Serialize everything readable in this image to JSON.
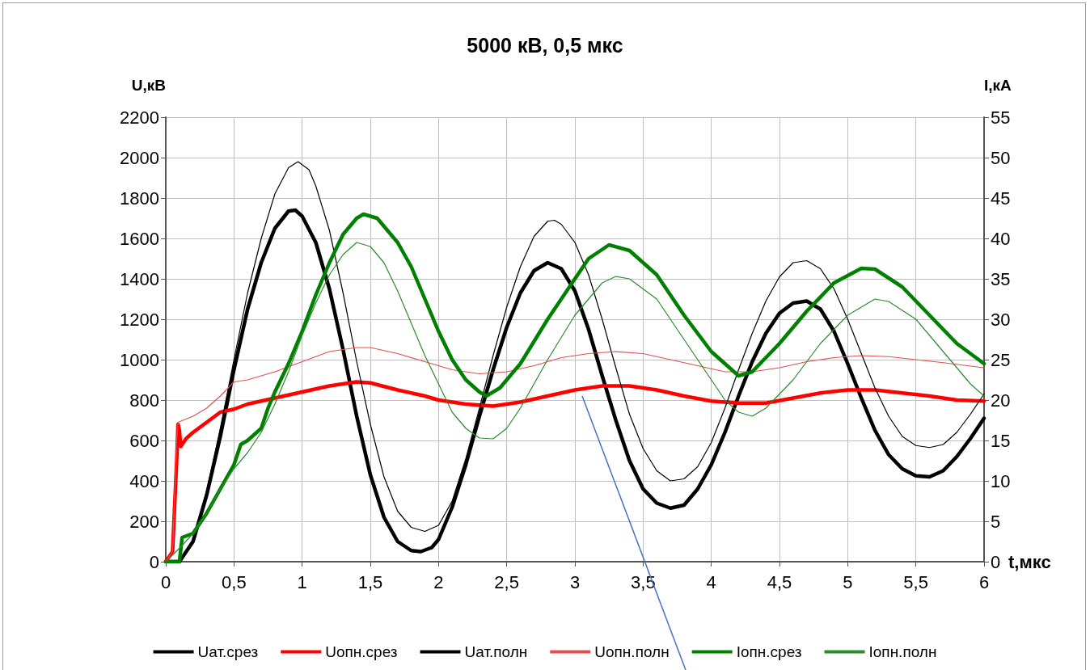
{
  "chart_data": {
    "type": "line",
    "title": "5000 кВ, 0,5 мкс",
    "xlabel": "t,мкс",
    "ylabel": "U,кВ",
    "y2label": "I,кА",
    "xlim": [
      0,
      6
    ],
    "xticks": [
      0,
      {
        "value": 0.5,
        "label": "0,5"
      },
      1,
      {
        "value": 1.5,
        "label": "1,5"
      },
      2,
      {
        "value": 2.5,
        "label": "2,5"
      },
      3,
      {
        "value": 3.5,
        "label": "3,5"
      },
      4,
      {
        "value": 4.5,
        "label": "4,5"
      },
      5,
      {
        "value": 5.5,
        "label": "5,5"
      },
      6
    ],
    "ylim": [
      0,
      2200
    ],
    "yticks": [
      0,
      200,
      400,
      600,
      800,
      1000,
      1200,
      1400,
      1600,
      1800,
      2000,
      2200
    ],
    "y2lim": [
      0,
      55
    ],
    "y2ticks": [
      0,
      5,
      10,
      15,
      20,
      25,
      30,
      35,
      40,
      45,
      50,
      55
    ],
    "grid": true,
    "legend": "bottom",
    "marker": "none",
    "line_style": "solid",
    "series": [
      {
        "name": "Uат.срез",
        "color": "#000000",
        "x": [
          0,
          0.1,
          0.2,
          0.3,
          0.4,
          0.5,
          0.6,
          0.7,
          0.8,
          0.9,
          0.95,
          1.0,
          1.1,
          1.2,
          1.3,
          1.4,
          1.5,
          1.6,
          1.7,
          1.8,
          1.87,
          1.95,
          2.0,
          2.1,
          2.2,
          2.3,
          2.4,
          2.5,
          2.6,
          2.7,
          2.8,
          2.9,
          3.0,
          3.1,
          3.2,
          3.3,
          3.4,
          3.5,
          3.6,
          3.7,
          3.8,
          3.9,
          4.0,
          4.1,
          4.2,
          4.3,
          4.4,
          4.5,
          4.6,
          4.7,
          4.8,
          4.9,
          5.0,
          5.1,
          5.2,
          5.3,
          5.4,
          5.5,
          5.6,
          5.7,
          5.8,
          5.9,
          6.0
        ],
        "values": [
          0,
          0,
          100,
          330,
          620,
          950,
          1250,
          1480,
          1650,
          1735,
          1740,
          1710,
          1580,
          1350,
          1050,
          720,
          430,
          220,
          100,
          55,
          50,
          70,
          110,
          270,
          480,
          720,
          950,
          1160,
          1330,
          1440,
          1480,
          1450,
          1340,
          1150,
          920,
          700,
          500,
          360,
          290,
          265,
          280,
          360,
          480,
          640,
          820,
          990,
          1130,
          1230,
          1280,
          1290,
          1250,
          1140,
          980,
          810,
          650,
          530,
          460,
          425,
          420,
          450,
          520,
          610,
          710
        ]
      },
      {
        "name": "Uопн.срез",
        "color": "#ff0000",
        "x": [
          0,
          0.05,
          0.08,
          0.09,
          0.1,
          0.11,
          0.15,
          0.2,
          0.3,
          0.4,
          0.5,
          0.6,
          0.8,
          1.0,
          1.2,
          1.4,
          1.5,
          1.7,
          1.9,
          2.0,
          2.2,
          2.4,
          2.6,
          2.8,
          3.0,
          3.2,
          3.4,
          3.6,
          3.8,
          4.0,
          4.2,
          4.4,
          4.6,
          4.8,
          5.0,
          5.2,
          5.4,
          5.6,
          5.8,
          6.0
        ],
        "values": [
          0,
          50,
          500,
          680,
          650,
          570,
          610,
          640,
          690,
          740,
          755,
          780,
          810,
          840,
          870,
          890,
          885,
          850,
          820,
          800,
          780,
          770,
          790,
          820,
          850,
          870,
          870,
          850,
          820,
          795,
          785,
          785,
          810,
          835,
          850,
          850,
          835,
          820,
          800,
          795
        ]
      },
      {
        "name": "Uат.полн",
        "color": "#000000",
        "x": [
          0,
          0.1,
          0.2,
          0.3,
          0.4,
          0.5,
          0.6,
          0.7,
          0.8,
          0.9,
          0.97,
          1.05,
          1.1,
          1.2,
          1.3,
          1.4,
          1.5,
          1.6,
          1.7,
          1.8,
          1.9,
          2.0,
          2.1,
          2.2,
          2.3,
          2.4,
          2.5,
          2.6,
          2.7,
          2.8,
          2.85,
          2.9,
          3.0,
          3.1,
          3.2,
          3.3,
          3.4,
          3.5,
          3.6,
          3.7,
          3.8,
          3.9,
          4.0,
          4.1,
          4.2,
          4.3,
          4.4,
          4.5,
          4.6,
          4.7,
          4.8,
          4.9,
          5.0,
          5.1,
          5.2,
          5.3,
          5.4,
          5.5,
          5.6,
          5.7,
          5.8,
          5.9,
          6.0
        ],
        "values": [
          0,
          0,
          110,
          350,
          660,
          1000,
          1330,
          1600,
          1820,
          1950,
          1980,
          1940,
          1860,
          1640,
          1330,
          990,
          680,
          420,
          250,
          170,
          150,
          180,
          300,
          510,
          760,
          1020,
          1260,
          1460,
          1610,
          1685,
          1690,
          1670,
          1580,
          1420,
          1200,
          960,
          730,
          560,
          450,
          400,
          410,
          470,
          590,
          760,
          950,
          1130,
          1290,
          1410,
          1480,
          1490,
          1450,
          1350,
          1200,
          1030,
          860,
          720,
          620,
          575,
          565,
          580,
          640,
          730,
          830
        ]
      },
      {
        "name": "Uопн.полн",
        "color": "#e05050",
        "x": [
          0,
          0.05,
          0.08,
          0.09,
          0.2,
          0.3,
          0.4,
          0.5,
          0.6,
          0.8,
          1.0,
          1.2,
          1.4,
          1.5,
          1.7,
          1.9,
          2.1,
          2.3,
          2.5,
          2.7,
          2.9,
          3.1,
          3.3,
          3.5,
          3.7,
          3.9,
          4.1,
          4.3,
          4.5,
          4.7,
          4.9,
          5.1,
          5.3,
          5.5,
          5.7,
          6.0
        ],
        "values": [
          0,
          50,
          600,
          690,
          720,
          760,
          820,
          890,
          900,
          940,
          990,
          1040,
          1060,
          1060,
          1030,
          990,
          950,
          930,
          940,
          970,
          1010,
          1030,
          1040,
          1030,
          1000,
          970,
          940,
          940,
          960,
          990,
          1010,
          1020,
          1015,
          1000,
          985,
          960
        ]
      },
      {
        "name": "Iопн.срез",
        "color": "#008000",
        "axis": "y2",
        "x": [
          0,
          0.1,
          0.12,
          0.2,
          0.3,
          0.4,
          0.5,
          0.55,
          0.6,
          0.7,
          0.75,
          0.8,
          0.9,
          1.0,
          1.1,
          1.2,
          1.3,
          1.4,
          1.45,
          1.55,
          1.7,
          1.8,
          1.9,
          2.0,
          2.1,
          2.2,
          2.3,
          2.35,
          2.45,
          2.6,
          2.8,
          3.0,
          3.1,
          3.25,
          3.4,
          3.6,
          3.8,
          4.0,
          4.2,
          4.3,
          4.5,
          4.7,
          4.9,
          5.1,
          5.2,
          5.4,
          5.6,
          5.8,
          6.0
        ],
        "values": [
          0,
          0,
          3,
          3.5,
          6,
          9,
          12,
          14.5,
          15,
          16.5,
          19,
          21,
          24.5,
          28.5,
          33,
          37,
          40.5,
          42.5,
          43,
          42.5,
          39.5,
          36.5,
          32.5,
          28.5,
          25,
          22.5,
          21,
          20.5,
          21.5,
          24.5,
          30,
          35,
          37.5,
          39.2,
          38.5,
          35.5,
          30.5,
          26,
          23,
          23.5,
          27,
          31,
          34.5,
          36.3,
          36.2,
          34,
          30.5,
          27,
          24.5
        ]
      },
      {
        "name": "Iопн.полн",
        "color": "#2e8b2e",
        "axis": "y2",
        "x": [
          0,
          0.12,
          0.2,
          0.3,
          0.4,
          0.5,
          0.6,
          0.7,
          0.8,
          0.9,
          1.0,
          1.1,
          1.2,
          1.3,
          1.4,
          1.5,
          1.6,
          1.7,
          1.8,
          1.9,
          2.0,
          2.1,
          2.2,
          2.3,
          2.4,
          2.5,
          2.6,
          2.8,
          3.0,
          3.2,
          3.3,
          3.4,
          3.6,
          3.8,
          4.0,
          4.1,
          4.2,
          4.3,
          4.4,
          4.6,
          4.8,
          5.0,
          5.2,
          5.3,
          5.5,
          5.7,
          5.9,
          6.0
        ],
        "values": [
          0,
          2,
          3.5,
          6,
          9,
          11.5,
          13.5,
          16,
          19.5,
          23.5,
          28,
          32,
          35.5,
          38,
          39.5,
          39,
          37,
          33.5,
          29.5,
          25.5,
          22,
          18.5,
          16.5,
          15.3,
          15.2,
          16.5,
          19,
          25,
          30.5,
          34.5,
          35.3,
          35,
          32.5,
          27.5,
          22.5,
          20,
          18.5,
          18,
          19,
          22.5,
          27,
          30.5,
          32.5,
          32.2,
          30,
          26,
          22,
          20.5
        ]
      }
    ]
  }
}
